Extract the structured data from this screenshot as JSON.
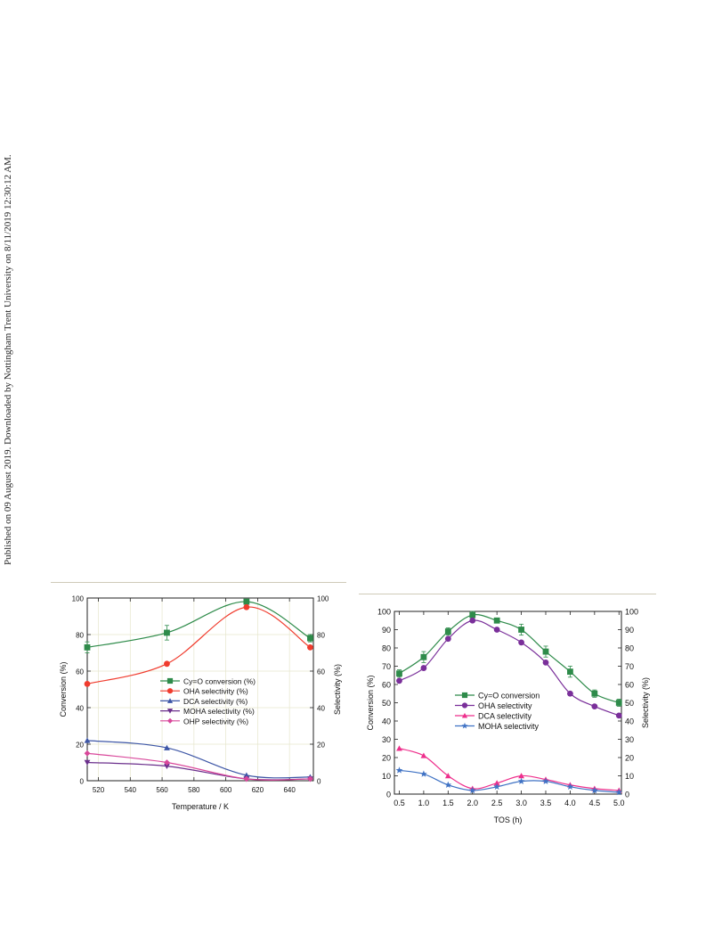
{
  "side_note": "Published on 09 August 2019. Downloaded by Nottingham Trent University on 8/11/2019 12:30:12 AM.",
  "chart_data": [
    {
      "type": "line",
      "title": "",
      "xlabel": "Temperature / K",
      "ylabel": "Conversion (%)",
      "ylabel_right": "Selectivity (%)",
      "xlim": [
        513,
        655
      ],
      "ylim": [
        0,
        100
      ],
      "ylim_right": [
        0,
        100
      ],
      "xticks": [
        "520",
        "540",
        "560",
        "580",
        "600",
        "620",
        "640"
      ],
      "yticks": [
        "0",
        "20",
        "40",
        "60",
        "80",
        "100"
      ],
      "yticks_right": [
        "0",
        "20",
        "40",
        "60",
        "80",
        "100"
      ],
      "grid": true,
      "legend_position": "center",
      "x": [
        513,
        563,
        613,
        653
      ],
      "series": [
        {
          "name": "Cy=O conversion (%)",
          "marker": "square",
          "color": "#2e8b4a",
          "values": [
            73,
            81,
            98,
            78
          ],
          "error": [
            3,
            4,
            1,
            2
          ]
        },
        {
          "name": "OHA selectivity (%)",
          "marker": "circle",
          "color": "#f03c2e",
          "values": [
            53,
            64,
            95,
            73
          ]
        },
        {
          "name": "DCA selectivity (%)",
          "marker": "triangle-up",
          "color": "#3d56a6",
          "values": [
            22,
            18,
            3,
            2
          ]
        },
        {
          "name": "MOHA selectivity (%)",
          "marker": "triangle-down",
          "color": "#6b2f8c",
          "values": [
            10,
            8,
            1,
            1
          ]
        },
        {
          "name": "OHP selectivity (%)",
          "marker": "diamond",
          "color": "#d9489b",
          "values": [
            15,
            10,
            1,
            1
          ]
        }
      ]
    },
    {
      "type": "line",
      "title": "",
      "xlabel": "TOS (h)",
      "ylabel": "Conversion (%)",
      "ylabel_right": "Selectivity (%)",
      "xlim": [
        0.4,
        5.05
      ],
      "ylim": [
        0,
        100
      ],
      "ylim_right": [
        0,
        100
      ],
      "xticks": [
        "0.5",
        "1.0",
        "1.5",
        "2.0",
        "2.5",
        "3.0",
        "3.5",
        "4.0",
        "4.5",
        "5.0"
      ],
      "yticks": [
        "0",
        "10",
        "20",
        "30",
        "40",
        "50",
        "60",
        "70",
        "80",
        "90",
        "100"
      ],
      "yticks_right": [
        "0",
        "10",
        "20",
        "30",
        "40",
        "50",
        "60",
        "70",
        "80",
        "90",
        "100"
      ],
      "grid": false,
      "legend_position": "center-left",
      "x": [
        0.5,
        1.0,
        1.5,
        2.0,
        2.5,
        3.0,
        3.5,
        4.0,
        4.5,
        5.0
      ],
      "series": [
        {
          "name": "Cy=O conversion",
          "marker": "square",
          "color": "#2e8b4a",
          "values": [
            66,
            75,
            89,
            98,
            95,
            90,
            78,
            67,
            55,
            50
          ],
          "error": [
            2,
            3,
            2,
            2,
            1,
            3,
            3,
            3,
            2,
            2
          ]
        },
        {
          "name": "OHA selectivity",
          "marker": "circle",
          "color": "#7a2f9a",
          "values": [
            62,
            69,
            85,
            95,
            90,
            83,
            72,
            55,
            48,
            43
          ]
        },
        {
          "name": "DCA selectivity",
          "marker": "triangle-up",
          "color": "#ee2f8c",
          "values": [
            25,
            21,
            10,
            3,
            6,
            10,
            8,
            5,
            3,
            2
          ]
        },
        {
          "name": "MOHA selectivity",
          "marker": "star",
          "color": "#3f72c4",
          "values": [
            13,
            11,
            5,
            2,
            4,
            7,
            7,
            4,
            2,
            1
          ]
        }
      ]
    }
  ]
}
